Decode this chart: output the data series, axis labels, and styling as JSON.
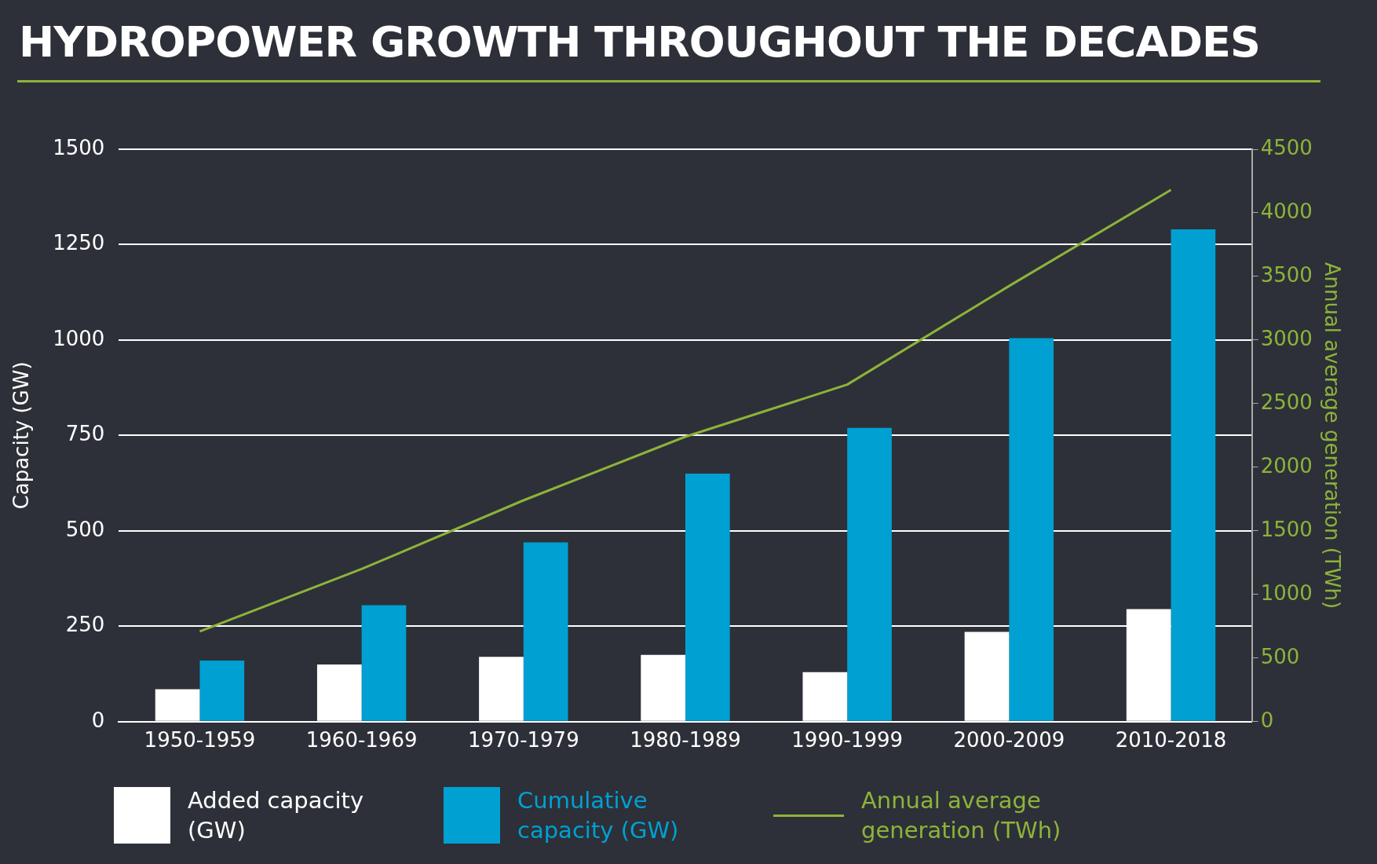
{
  "chart_data": {
    "type": "bar",
    "title": "HYDROPOWER GROWTH THROUGHOUT THE DECADES",
    "ylabel": "Capacity (GW)",
    "y2label": "Annual average generation (TWh)",
    "categories": [
      "1950-1959",
      "1960-1969",
      "1970-1979",
      "1980-1989",
      "1990-1999",
      "2000-2009",
      "2010-2018"
    ],
    "series": [
      {
        "name": "Added capacity (GW)",
        "color": "#ffffff",
        "values": [
          85,
          150,
          170,
          175,
          130,
          235,
          295
        ]
      },
      {
        "name": "Cumulative capacity (GW)",
        "color": "#00a0d2",
        "values": [
          160,
          305,
          470,
          650,
          770,
          1005,
          1290
        ]
      },
      {
        "name": "Annual average generation (TWh)",
        "color": "#8db33a",
        "type": "line",
        "axis": "y2",
        "values": [
          710,
          1200,
          1740,
          2240,
          2650,
          3425,
          4180
        ]
      }
    ],
    "ylim": [
      0,
      1500
    ],
    "yticks": [
      0,
      250,
      500,
      750,
      1000,
      1250,
      1500
    ],
    "y2lim": [
      0,
      4500
    ],
    "y2ticks": [
      0,
      500,
      1000,
      1500,
      2000,
      2500,
      3000,
      3500,
      4000,
      4500
    ],
    "grid": "y",
    "legend": "bottom",
    "marker": "none"
  }
}
